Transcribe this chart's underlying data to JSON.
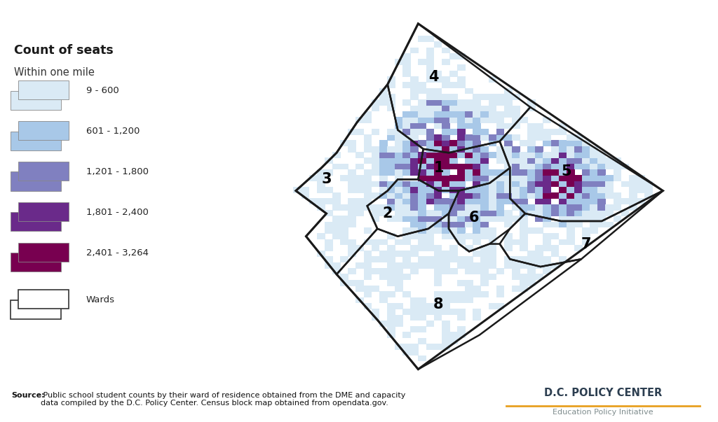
{
  "legend_title": "Count of seats",
  "legend_subtitle": "Within one mile",
  "legend_items": [
    {
      "label": "9 - 600",
      "color": "#daeaf5"
    },
    {
      "label": "601 - 1,200",
      "color": "#a8c8e8"
    },
    {
      "label": "1,201 - 1,800",
      "color": "#8080c0"
    },
    {
      "label": "1,801 - 2,400",
      "color": "#6a2a8a"
    },
    {
      "label": "2,401 - 3,264",
      "color": "#780050"
    }
  ],
  "source_text_bold": "Source:",
  "source_text_regular": " Public school student counts by their ward of residence obtained from the DME and capacity\ndata compiled by the D.C. Policy Center. Census block map obtained from opendata.gov.",
  "dc_policy_center": "D.C. POLICY CENTER",
  "education_policy": "Education Policy Initiative",
  "background_color": "#ffffff",
  "ward_border_color": "#1a1a1a",
  "accent_color": "#e8a020"
}
